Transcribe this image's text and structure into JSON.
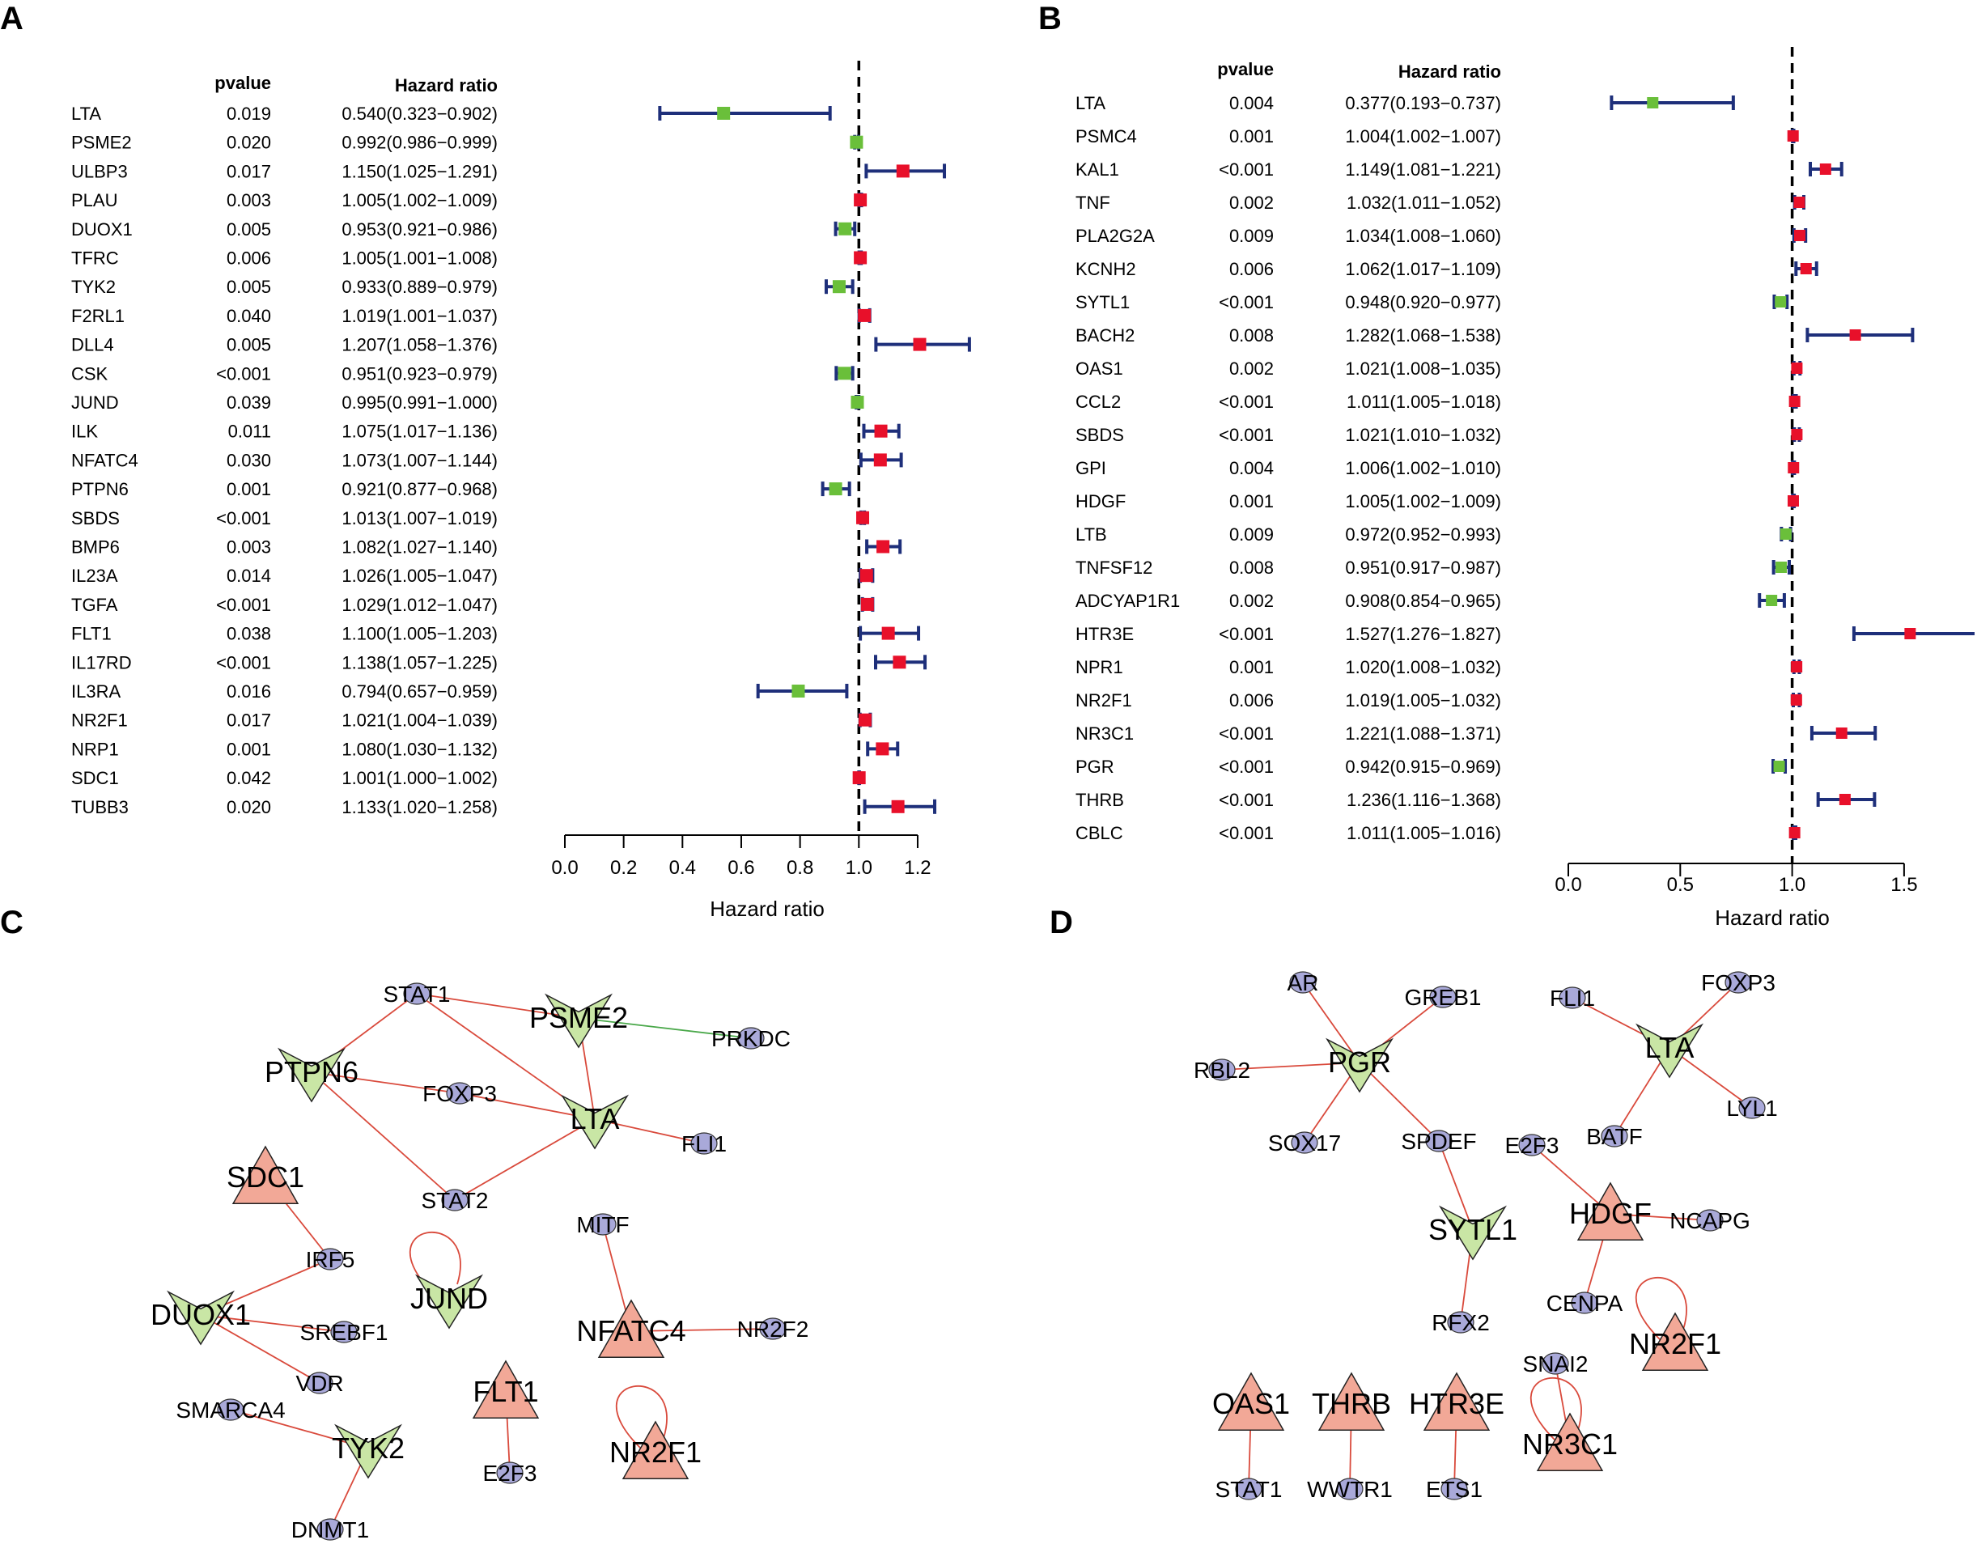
{
  "panels": {
    "a": "A",
    "b": "B",
    "c": "C",
    "d": "D"
  },
  "colors": {
    "risk": "#e8102a",
    "protective": "#6abf3a",
    "ci": "#1e2f7a",
    "node_risk": "#f2a897",
    "node_protective": "#c9e6a5",
    "node_tf": "#a9a9d9",
    "edge_pos": "#d94a3c",
    "edge_neg": "#4aa84a"
  },
  "chart_data": [
    {
      "panel": "A",
      "type": "forest",
      "col_headers": {
        "pvalue": "pvalue",
        "hr": "Hazard ratio"
      },
      "xlabel": "Hazard ratio",
      "xlim": [
        0.0,
        1.2
      ],
      "ref_line": 1.0,
      "ticks": [
        "0.0",
        "0.2",
        "0.4",
        "0.6",
        "0.8",
        "1.0",
        "1.2"
      ],
      "rows": [
        {
          "gene": "LTA",
          "p": "0.019",
          "hr_text": "0.540(0.323−0.902)",
          "hr": 0.54,
          "lo": 0.323,
          "hi": 0.902
        },
        {
          "gene": "PSME2",
          "p": "0.020",
          "hr_text": "0.992(0.986−0.999)",
          "hr": 0.992,
          "lo": 0.986,
          "hi": 0.999
        },
        {
          "gene": "ULBP3",
          "p": "0.017",
          "hr_text": "1.150(1.025−1.291)",
          "hr": 1.15,
          "lo": 1.025,
          "hi": 1.291
        },
        {
          "gene": "PLAU",
          "p": "0.003",
          "hr_text": "1.005(1.002−1.009)",
          "hr": 1.005,
          "lo": 1.002,
          "hi": 1.009
        },
        {
          "gene": "DUOX1",
          "p": "0.005",
          "hr_text": "0.953(0.921−0.986)",
          "hr": 0.953,
          "lo": 0.921,
          "hi": 0.986
        },
        {
          "gene": "TFRC",
          "p": "0.006",
          "hr_text": "1.005(1.001−1.008)",
          "hr": 1.005,
          "lo": 1.001,
          "hi": 1.008
        },
        {
          "gene": "TYK2",
          "p": "0.005",
          "hr_text": "0.933(0.889−0.979)",
          "hr": 0.933,
          "lo": 0.889,
          "hi": 0.979
        },
        {
          "gene": "F2RL1",
          "p": "0.040",
          "hr_text": "1.019(1.001−1.037)",
          "hr": 1.019,
          "lo": 1.001,
          "hi": 1.037
        },
        {
          "gene": "DLL4",
          "p": "0.005",
          "hr_text": "1.207(1.058−1.376)",
          "hr": 1.207,
          "lo": 1.058,
          "hi": 1.376
        },
        {
          "gene": "CSK",
          "p": "<0.001",
          "hr_text": "0.951(0.923−0.979)",
          "hr": 0.951,
          "lo": 0.923,
          "hi": 0.979
        },
        {
          "gene": "JUND",
          "p": "0.039",
          "hr_text": "0.995(0.991−1.000)",
          "hr": 0.995,
          "lo": 0.991,
          "hi": 1.0
        },
        {
          "gene": "ILK",
          "p": "0.011",
          "hr_text": "1.075(1.017−1.136)",
          "hr": 1.075,
          "lo": 1.017,
          "hi": 1.136
        },
        {
          "gene": "NFATC4",
          "p": "0.030",
          "hr_text": "1.073(1.007−1.144)",
          "hr": 1.073,
          "lo": 1.007,
          "hi": 1.144
        },
        {
          "gene": "PTPN6",
          "p": "0.001",
          "hr_text": "0.921(0.877−0.968)",
          "hr": 0.921,
          "lo": 0.877,
          "hi": 0.968
        },
        {
          "gene": "SBDS",
          "p": "<0.001",
          "hr_text": "1.013(1.007−1.019)",
          "hr": 1.013,
          "lo": 1.007,
          "hi": 1.019
        },
        {
          "gene": "BMP6",
          "p": "0.003",
          "hr_text": "1.082(1.027−1.140)",
          "hr": 1.082,
          "lo": 1.027,
          "hi": 1.14
        },
        {
          "gene": "IL23A",
          "p": "0.014",
          "hr_text": "1.026(1.005−1.047)",
          "hr": 1.026,
          "lo": 1.005,
          "hi": 1.047
        },
        {
          "gene": "TGFA",
          "p": "<0.001",
          "hr_text": "1.029(1.012−1.047)",
          "hr": 1.029,
          "lo": 1.012,
          "hi": 1.047
        },
        {
          "gene": "FLT1",
          "p": "0.038",
          "hr_text": "1.100(1.005−1.203)",
          "hr": 1.1,
          "lo": 1.005,
          "hi": 1.203
        },
        {
          "gene": "IL17RD",
          "p": "<0.001",
          "hr_text": "1.138(1.057−1.225)",
          "hr": 1.138,
          "lo": 1.057,
          "hi": 1.225
        },
        {
          "gene": "IL3RA",
          "p": "0.016",
          "hr_text": "0.794(0.657−0.959)",
          "hr": 0.794,
          "lo": 0.657,
          "hi": 0.959
        },
        {
          "gene": "NR2F1",
          "p": "0.017",
          "hr_text": "1.021(1.004−1.039)",
          "hr": 1.021,
          "lo": 1.004,
          "hi": 1.039
        },
        {
          "gene": "NRP1",
          "p": "0.001",
          "hr_text": "1.080(1.030−1.132)",
          "hr": 1.08,
          "lo": 1.03,
          "hi": 1.132
        },
        {
          "gene": "SDC1",
          "p": "0.042",
          "hr_text": "1.001(1.000−1.002)",
          "hr": 1.001,
          "lo": 1.0,
          "hi": 1.002
        },
        {
          "gene": "TUBB3",
          "p": "0.020",
          "hr_text": "1.133(1.020−1.258)",
          "hr": 1.133,
          "lo": 1.02,
          "hi": 1.258
        }
      ]
    },
    {
      "panel": "B",
      "type": "forest",
      "col_headers": {
        "pvalue": "pvalue",
        "hr": "Hazard ratio"
      },
      "xlabel": "Hazard ratio",
      "xlim": [
        0.0,
        1.5
      ],
      "ref_line": 1.0,
      "ticks": [
        "0.0",
        "0.5",
        "1.0",
        "1.5"
      ],
      "rows": [
        {
          "gene": "LTA",
          "p": "0.004",
          "hr_text": "0.377(0.193−0.737)",
          "hr": 0.377,
          "lo": 0.193,
          "hi": 0.737
        },
        {
          "gene": "PSMC4",
          "p": "0.001",
          "hr_text": "1.004(1.002−1.007)",
          "hr": 1.004,
          "lo": 1.002,
          "hi": 1.007
        },
        {
          "gene": "KAL1",
          "p": "<0.001",
          "hr_text": "1.149(1.081−1.221)",
          "hr": 1.149,
          "lo": 1.081,
          "hi": 1.221
        },
        {
          "gene": "TNF",
          "p": "0.002",
          "hr_text": "1.032(1.011−1.052)",
          "hr": 1.032,
          "lo": 1.011,
          "hi": 1.052
        },
        {
          "gene": "PLA2G2A",
          "p": "0.009",
          "hr_text": "1.034(1.008−1.060)",
          "hr": 1.034,
          "lo": 1.008,
          "hi": 1.06
        },
        {
          "gene": "KCNH2",
          "p": "0.006",
          "hr_text": "1.062(1.017−1.109)",
          "hr": 1.062,
          "lo": 1.017,
          "hi": 1.109
        },
        {
          "gene": "SYTL1",
          "p": "<0.001",
          "hr_text": "0.948(0.920−0.977)",
          "hr": 0.948,
          "lo": 0.92,
          "hi": 0.977
        },
        {
          "gene": "BACH2",
          "p": "0.008",
          "hr_text": "1.282(1.068−1.538)",
          "hr": 1.282,
          "lo": 1.068,
          "hi": 1.538
        },
        {
          "gene": "OAS1",
          "p": "0.002",
          "hr_text": "1.021(1.008−1.035)",
          "hr": 1.021,
          "lo": 1.008,
          "hi": 1.035
        },
        {
          "gene": "CCL2",
          "p": "<0.001",
          "hr_text": "1.011(1.005−1.018)",
          "hr": 1.011,
          "lo": 1.005,
          "hi": 1.018
        },
        {
          "gene": "SBDS",
          "p": "<0.001",
          "hr_text": "1.021(1.010−1.032)",
          "hr": 1.021,
          "lo": 1.01,
          "hi": 1.032
        },
        {
          "gene": "GPI",
          "p": "0.004",
          "hr_text": "1.006(1.002−1.010)",
          "hr": 1.006,
          "lo": 1.002,
          "hi": 1.01
        },
        {
          "gene": "HDGF",
          "p": "0.001",
          "hr_text": "1.005(1.002−1.009)",
          "hr": 1.005,
          "lo": 1.002,
          "hi": 1.009
        },
        {
          "gene": "LTB",
          "p": "0.009",
          "hr_text": "0.972(0.952−0.993)",
          "hr": 0.972,
          "lo": 0.952,
          "hi": 0.993
        },
        {
          "gene": "TNFSF12",
          "p": "0.008",
          "hr_text": "0.951(0.917−0.987)",
          "hr": 0.951,
          "lo": 0.917,
          "hi": 0.987
        },
        {
          "gene": "ADCYAP1R1",
          "p": "0.002",
          "hr_text": "0.908(0.854−0.965)",
          "hr": 0.908,
          "lo": 0.854,
          "hi": 0.965
        },
        {
          "gene": "HTR3E",
          "p": "<0.001",
          "hr_text": "1.527(1.276−1.827)",
          "hr": 1.527,
          "lo": 1.276,
          "hi": 1.827
        },
        {
          "gene": "NPR1",
          "p": "0.001",
          "hr_text": "1.020(1.008−1.032)",
          "hr": 1.02,
          "lo": 1.008,
          "hi": 1.032
        },
        {
          "gene": "NR2F1",
          "p": "0.006",
          "hr_text": "1.019(1.005−1.032)",
          "hr": 1.019,
          "lo": 1.005,
          "hi": 1.032
        },
        {
          "gene": "NR3C1",
          "p": "<0.001",
          "hr_text": "1.221(1.088−1.371)",
          "hr": 1.221,
          "lo": 1.088,
          "hi": 1.371
        },
        {
          "gene": "PGR",
          "p": "<0.001",
          "hr_text": "0.942(0.915−0.969)",
          "hr": 0.942,
          "lo": 0.915,
          "hi": 0.969
        },
        {
          "gene": "THRB",
          "p": "<0.001",
          "hr_text": "1.236(1.116−1.368)",
          "hr": 1.236,
          "lo": 1.116,
          "hi": 1.368
        },
        {
          "gene": "CBLC",
          "p": "<0.001",
          "hr_text": "1.011(1.005−1.016)",
          "hr": 1.011,
          "lo": 1.005,
          "hi": 1.016
        }
      ]
    }
  ],
  "networks": {
    "C": {
      "nodes": [
        {
          "id": "PSME2",
          "type": "protective",
          "big": true
        },
        {
          "id": "PTPN6",
          "type": "protective",
          "big": true
        },
        {
          "id": "LTA",
          "type": "protective",
          "big": true
        },
        {
          "id": "DUOX1",
          "type": "protective",
          "big": true
        },
        {
          "id": "JUND",
          "type": "protective",
          "big": true
        },
        {
          "id": "TYK2",
          "type": "protective",
          "big": true
        },
        {
          "id": "SDC1",
          "type": "risk",
          "big": true
        },
        {
          "id": "NFATC4",
          "type": "risk",
          "big": true
        },
        {
          "id": "FLT1",
          "type": "risk",
          "big": true
        },
        {
          "id": "NR2F1",
          "type": "risk",
          "big": true
        },
        {
          "id": "STAT1",
          "type": "tf"
        },
        {
          "id": "PRKDC",
          "type": "tf"
        },
        {
          "id": "FOXP3",
          "type": "tf"
        },
        {
          "id": "FLI1",
          "type": "tf"
        },
        {
          "id": "STAT2",
          "type": "tf"
        },
        {
          "id": "IRF5",
          "type": "tf"
        },
        {
          "id": "SREBF1",
          "type": "tf"
        },
        {
          "id": "VDR",
          "type": "tf"
        },
        {
          "id": "SMARCA4",
          "type": "tf"
        },
        {
          "id": "DNMT1",
          "type": "tf"
        },
        {
          "id": "MITF",
          "type": "tf"
        },
        {
          "id": "NR2F2",
          "type": "tf"
        },
        {
          "id": "E2F3",
          "type": "tf"
        }
      ],
      "edges": [
        [
          "STAT1",
          "PSME2",
          "pos"
        ],
        [
          "STAT1",
          "PTPN6",
          "pos"
        ],
        [
          "STAT1",
          "LTA",
          "pos"
        ],
        [
          "PSME2",
          "PRKDC",
          "neg"
        ],
        [
          "PSME2",
          "LTA",
          "pos"
        ],
        [
          "PTPN6",
          "FOXP3",
          "pos"
        ],
        [
          "PTPN6",
          "STAT2",
          "pos"
        ],
        [
          "FOXP3",
          "LTA",
          "pos"
        ],
        [
          "STAT2",
          "LTA",
          "pos"
        ],
        [
          "LTA",
          "FLI1",
          "pos"
        ],
        [
          "SDC1",
          "IRF5",
          "pos"
        ],
        [
          "IRF5",
          "DUOX1",
          "pos"
        ],
        [
          "DUOX1",
          "SREBF1",
          "pos"
        ],
        [
          "DUOX1",
          "VDR",
          "pos"
        ],
        [
          "SMARCA4",
          "TYK2",
          "pos"
        ],
        [
          "TYK2",
          "DNMT1",
          "pos"
        ],
        [
          "MITF",
          "NFATC4",
          "pos"
        ],
        [
          "NFATC4",
          "NR2F2",
          "pos"
        ],
        [
          "FLT1",
          "E2F3",
          "pos"
        ]
      ],
      "self_loops": [
        "JUND",
        "NR2F1"
      ]
    },
    "D": {
      "nodes": [
        {
          "id": "PGR",
          "type": "protective",
          "big": true
        },
        {
          "id": "LTA",
          "type": "protective",
          "big": true
        },
        {
          "id": "SYTL1",
          "type": "protective",
          "big": true
        },
        {
          "id": "HDGF",
          "type": "risk",
          "big": true
        },
        {
          "id": "NR2F1",
          "type": "risk",
          "big": true
        },
        {
          "id": "NR3C1",
          "type": "risk",
          "big": true
        },
        {
          "id": "OAS1",
          "type": "risk",
          "big": true
        },
        {
          "id": "THRB",
          "type": "risk",
          "big": true
        },
        {
          "id": "HTR3E",
          "type": "risk",
          "big": true
        },
        {
          "id": "AR",
          "type": "tf"
        },
        {
          "id": "GREB1",
          "type": "tf"
        },
        {
          "id": "RBL2",
          "type": "tf"
        },
        {
          "id": "SOX17",
          "type": "tf"
        },
        {
          "id": "SPDEF",
          "type": "tf"
        },
        {
          "id": "FLI1",
          "type": "tf"
        },
        {
          "id": "FOXP3",
          "type": "tf"
        },
        {
          "id": "LYL1",
          "type": "tf"
        },
        {
          "id": "BATF",
          "type": "tf"
        },
        {
          "id": "E2F3",
          "type": "tf"
        },
        {
          "id": "NCAPG",
          "type": "tf"
        },
        {
          "id": "CENPA",
          "type": "tf"
        },
        {
          "id": "RFX2",
          "type": "tf"
        },
        {
          "id": "SNAI2",
          "type": "tf"
        },
        {
          "id": "STAT1",
          "type": "tf"
        },
        {
          "id": "WWTR1",
          "type": "tf"
        },
        {
          "id": "ETS1",
          "type": "tf"
        }
      ],
      "edges": [
        [
          "AR",
          "PGR",
          "pos"
        ],
        [
          "GREB1",
          "PGR",
          "pos"
        ],
        [
          "RBL2",
          "PGR",
          "pos"
        ],
        [
          "SOX17",
          "PGR",
          "pos"
        ],
        [
          "PGR",
          "SPDEF",
          "pos"
        ],
        [
          "SPDEF",
          "SYTL1",
          "pos"
        ],
        [
          "SYTL1",
          "RFX2",
          "pos"
        ],
        [
          "FLI1",
          "LTA",
          "pos"
        ],
        [
          "FOXP3",
          "LTA",
          "pos"
        ],
        [
          "LTA",
          "LYL1",
          "pos"
        ],
        [
          "LTA",
          "BATF",
          "pos"
        ],
        [
          "E2F3",
          "HDGF",
          "pos"
        ],
        [
          "HDGF",
          "NCAPG",
          "pos"
        ],
        [
          "HDGF",
          "CENPA",
          "pos"
        ],
        [
          "SNAI2",
          "NR3C1",
          "pos"
        ],
        [
          "OAS1",
          "STAT1",
          "pos"
        ],
        [
          "THRB",
          "WWTR1",
          "pos"
        ],
        [
          "HTR3E",
          "ETS1",
          "pos"
        ]
      ],
      "self_loops": [
        "NR2F1",
        "NR3C1"
      ]
    }
  }
}
